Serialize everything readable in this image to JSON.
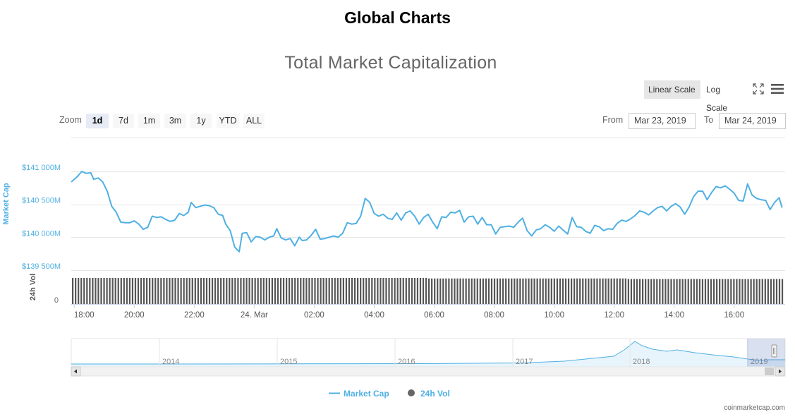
{
  "page_title": "Global Charts",
  "chart_title": "Total Market Capitalization",
  "scale": {
    "linear_label": "Linear Scale",
    "log_label": "Log Scale",
    "active": "linear"
  },
  "icons": {
    "fullscreen": "fullscreen-icon",
    "menu": "hamburger-menu-icon"
  },
  "zoom": {
    "label": "Zoom",
    "buttons": [
      "1d",
      "7d",
      "1m",
      "3m",
      "1y",
      "YTD",
      "ALL"
    ],
    "active": "1d"
  },
  "range": {
    "from_label": "From",
    "from_value": "Mar 23, 2019",
    "to_label": "To",
    "to_value": "Mar 24, 2019"
  },
  "legend": [
    {
      "name": "Market Cap",
      "marker": "line"
    },
    {
      "name": "24h Vol",
      "marker": "circle"
    }
  ],
  "credit": "coinmarketcap.com",
  "colors": {
    "market_cap": "#4fb0e3",
    "volume": "#555555",
    "navigator_fill": "#e8f4fb"
  },
  "chart_data": {
    "type": "line",
    "y_axis": {
      "title": "Market Cap",
      "ticks": [
        "$141 000M",
        "$140 500M",
        "$140 000M",
        "$139 500M"
      ],
      "tick_values": [
        141000,
        140500,
        140000,
        139500
      ],
      "range": [
        139500,
        141000
      ],
      "grid": true
    },
    "volume_axis": {
      "title": "24h Vol",
      "ticks": [
        "0"
      ]
    },
    "x_axis": {
      "ticks": [
        "18:00",
        "20:00",
        "22:00",
        "24. Mar",
        "02:00",
        "04:00",
        "06:00",
        "08:00",
        "10:00",
        "12:00",
        "14:00",
        "16:00"
      ],
      "tick_hours": [
        18,
        20,
        22,
        24,
        26,
        28,
        30,
        32,
        34,
        36,
        38,
        40
      ],
      "range_hours": [
        17.9,
        41.7
      ]
    },
    "series": [
      {
        "name": "Market Cap",
        "unit": "$M",
        "points": [
          [
            17.9,
            140840
          ],
          [
            18.1,
            140920
          ],
          [
            18.25,
            141000
          ],
          [
            18.4,
            140970
          ],
          [
            18.55,
            140980
          ],
          [
            18.65,
            140880
          ],
          [
            18.8,
            140900
          ],
          [
            18.95,
            140840
          ],
          [
            19.1,
            140700
          ],
          [
            19.25,
            140470
          ],
          [
            19.4,
            140380
          ],
          [
            19.55,
            140230
          ],
          [
            19.7,
            140220
          ],
          [
            19.85,
            140220
          ],
          [
            20.0,
            140250
          ],
          [
            20.15,
            140200
          ],
          [
            20.3,
            140120
          ],
          [
            20.45,
            140150
          ],
          [
            20.6,
            140320
          ],
          [
            20.75,
            140300
          ],
          [
            20.9,
            140310
          ],
          [
            21.05,
            140270
          ],
          [
            21.2,
            140240
          ],
          [
            21.35,
            140260
          ],
          [
            21.5,
            140360
          ],
          [
            21.65,
            140330
          ],
          [
            21.8,
            140380
          ],
          [
            21.9,
            140530
          ],
          [
            22.05,
            140450
          ],
          [
            22.2,
            140470
          ],
          [
            22.35,
            140490
          ],
          [
            22.5,
            140480
          ],
          [
            22.65,
            140450
          ],
          [
            22.8,
            140350
          ],
          [
            22.95,
            140330
          ],
          [
            23.05,
            140200
          ],
          [
            23.2,
            140100
          ],
          [
            23.35,
            139850
          ],
          [
            23.5,
            139780
          ],
          [
            23.6,
            140060
          ],
          [
            23.75,
            140070
          ],
          [
            23.9,
            139930
          ],
          [
            24.05,
            140010
          ],
          [
            24.2,
            140000
          ],
          [
            24.35,
            139960
          ],
          [
            24.5,
            140000
          ],
          [
            24.65,
            140020
          ],
          [
            24.75,
            140130
          ],
          [
            24.9,
            139990
          ],
          [
            25.05,
            139960
          ],
          [
            25.2,
            139980
          ],
          [
            25.35,
            139870
          ],
          [
            25.5,
            140000
          ],
          [
            25.6,
            139950
          ],
          [
            25.75,
            139960
          ],
          [
            25.9,
            140030
          ],
          [
            26.05,
            140120
          ],
          [
            26.2,
            139970
          ],
          [
            26.35,
            139980
          ],
          [
            26.5,
            140000
          ],
          [
            26.65,
            140020
          ],
          [
            26.8,
            140000
          ],
          [
            26.95,
            140060
          ],
          [
            27.1,
            140220
          ],
          [
            27.25,
            140200
          ],
          [
            27.4,
            140210
          ],
          [
            27.55,
            140320
          ],
          [
            27.7,
            140590
          ],
          [
            27.85,
            140530
          ],
          [
            28.0,
            140360
          ],
          [
            28.15,
            140320
          ],
          [
            28.3,
            140350
          ],
          [
            28.45,
            140290
          ],
          [
            28.6,
            140270
          ],
          [
            28.75,
            140370
          ],
          [
            28.9,
            140260
          ],
          [
            29.05,
            140370
          ],
          [
            29.2,
            140400
          ],
          [
            29.35,
            140320
          ],
          [
            29.5,
            140200
          ],
          [
            29.65,
            140300
          ],
          [
            29.8,
            140350
          ],
          [
            29.95,
            140230
          ],
          [
            30.1,
            140130
          ],
          [
            30.25,
            140310
          ],
          [
            30.4,
            140300
          ],
          [
            30.55,
            140380
          ],
          [
            30.7,
            140370
          ],
          [
            30.85,
            140410
          ],
          [
            31.0,
            140230
          ],
          [
            31.15,
            140310
          ],
          [
            31.3,
            140320
          ],
          [
            31.45,
            140200
          ],
          [
            31.6,
            140300
          ],
          [
            31.75,
            140190
          ],
          [
            31.9,
            140190
          ],
          [
            32.05,
            140050
          ],
          [
            32.2,
            140150
          ],
          [
            32.35,
            140160
          ],
          [
            32.5,
            140170
          ],
          [
            32.65,
            140150
          ],
          [
            32.8,
            140230
          ],
          [
            32.95,
            140290
          ],
          [
            33.1,
            140100
          ],
          [
            33.25,
            140020
          ],
          [
            33.4,
            140110
          ],
          [
            33.55,
            140130
          ],
          [
            33.7,
            140190
          ],
          [
            33.85,
            140150
          ],
          [
            34.0,
            140090
          ],
          [
            34.15,
            140170
          ],
          [
            34.3,
            140110
          ],
          [
            34.45,
            140050
          ],
          [
            34.6,
            140300
          ],
          [
            34.75,
            140160
          ],
          [
            34.9,
            140150
          ],
          [
            35.05,
            140090
          ],
          [
            35.2,
            140060
          ],
          [
            35.35,
            140180
          ],
          [
            35.5,
            140160
          ],
          [
            35.65,
            140100
          ],
          [
            35.8,
            140130
          ],
          [
            35.95,
            140120
          ],
          [
            36.1,
            140210
          ],
          [
            36.25,
            140260
          ],
          [
            36.4,
            140240
          ],
          [
            36.55,
            140280
          ],
          [
            36.7,
            140330
          ],
          [
            36.85,
            140400
          ],
          [
            37.0,
            140380
          ],
          [
            37.15,
            140340
          ],
          [
            37.3,
            140400
          ],
          [
            37.45,
            140450
          ],
          [
            37.6,
            140470
          ],
          [
            37.75,
            140400
          ],
          [
            37.9,
            140470
          ],
          [
            38.05,
            140510
          ],
          [
            38.2,
            140460
          ],
          [
            38.35,
            140350
          ],
          [
            38.5,
            140460
          ],
          [
            38.65,
            140620
          ],
          [
            38.8,
            140700
          ],
          [
            38.95,
            140700
          ],
          [
            39.1,
            140570
          ],
          [
            39.25,
            140680
          ],
          [
            39.4,
            140770
          ],
          [
            39.55,
            140750
          ],
          [
            39.7,
            140780
          ],
          [
            39.85,
            140730
          ],
          [
            40.0,
            140670
          ],
          [
            40.15,
            140560
          ],
          [
            40.3,
            140550
          ],
          [
            40.45,
            140810
          ],
          [
            40.6,
            140640
          ],
          [
            40.75,
            140590
          ],
          [
            40.9,
            140570
          ],
          [
            41.05,
            140560
          ],
          [
            41.2,
            140420
          ],
          [
            41.35,
            140530
          ],
          [
            41.5,
            140600
          ],
          [
            41.6,
            140450
          ]
        ]
      },
      {
        "name": "24h Vol",
        "type": "column",
        "relative_levels": [
          0.95,
          0.93,
          0.91
        ],
        "note_levels_relative_to_max": true
      }
    ],
    "navigator": {
      "year_labels": [
        "2014",
        "2015",
        "2016",
        "2017",
        "2018",
        "2019"
      ]
    }
  }
}
